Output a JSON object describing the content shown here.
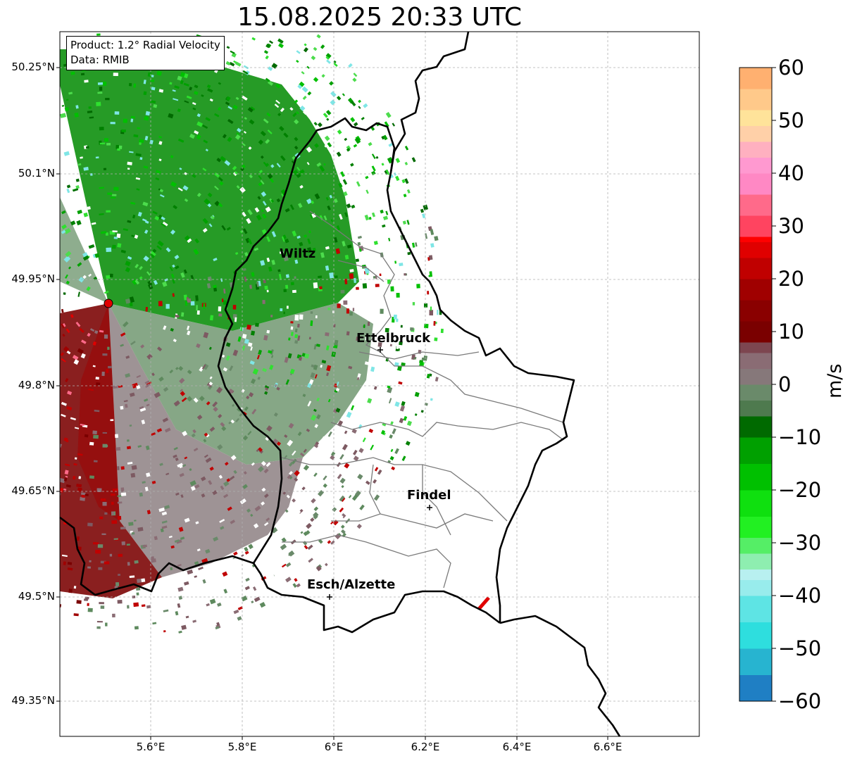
{
  "title": "15.08.2025 20:33 UTC",
  "info": {
    "product": "Product: 1.2° Radial Velocity",
    "source": "Data: RMIB"
  },
  "axes": {
    "lat_labels": [
      "50.25°N",
      "50.1°N",
      "49.95°N",
      "49.8°N",
      "49.65°N",
      "49.5°N",
      "49.35°N"
    ],
    "lon_labels": [
      "5.6°E",
      "5.8°E",
      "6°E",
      "6.2°E",
      "6.4°E",
      "6.6°E"
    ],
    "grid": true
  },
  "cities": [
    {
      "name": "Wiltz",
      "lon": 5.93,
      "lat": 49.97
    },
    {
      "name": "Ettelbruck",
      "lon": 6.1,
      "lat": 49.85
    },
    {
      "name": "Findel",
      "lon": 6.21,
      "lat": 49.63
    },
    {
      "name": "Esch/Alzette",
      "lon": 5.99,
      "lat": 49.5
    }
  ],
  "radar_site": {
    "lon": 5.51,
    "lat": 49.91,
    "color": "#e00000"
  },
  "colorbar": {
    "label": "m/s",
    "min": -60,
    "max": 60,
    "ticks": [
      "60",
      "50",
      "40",
      "30",
      "20",
      "10",
      "0",
      "−10",
      "−20",
      "−30",
      "−40",
      "−50",
      "−60"
    ]
  },
  "colors": {
    "outbound_dark": "#7a0000",
    "outbound_red": "#e00000",
    "outbound_pink": "#ff6a8a",
    "zero_mauve": "#8a6c74",
    "zero_grey": "#86787a",
    "inbound_grey_green": "#5e8a5e",
    "inbound_green": "#009a00",
    "inbound_bright": "#2ee02e",
    "inbound_cyan": "#7fe6e6",
    "border": "#000000",
    "canton": "#7a7a7a"
  }
}
